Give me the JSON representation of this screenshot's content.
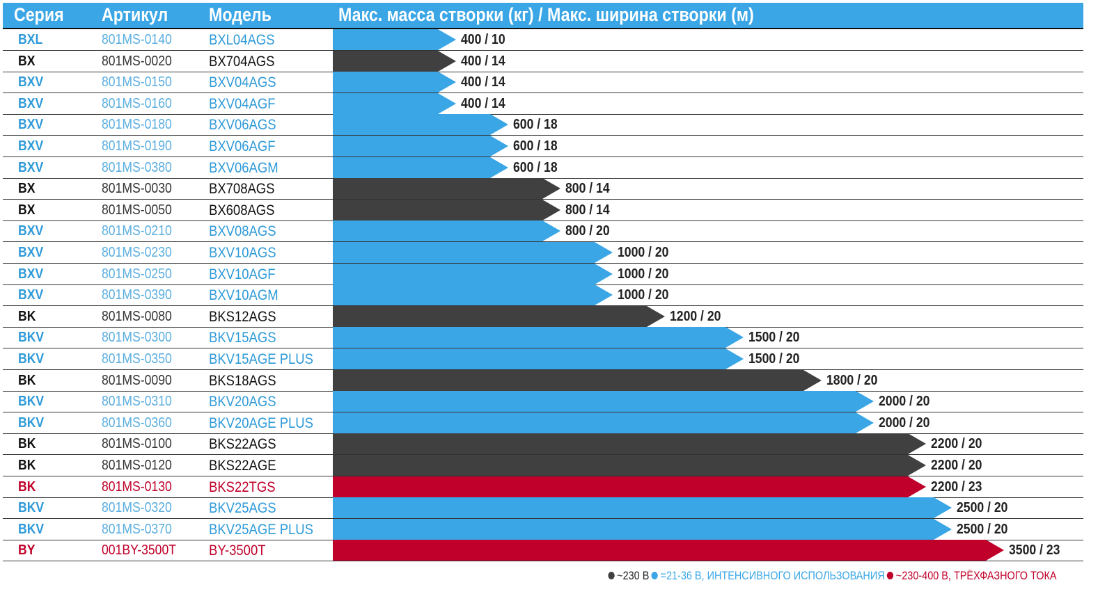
{
  "chart_data": {
    "type": "bar",
    "title": "",
    "headers": {
      "series": "Серия",
      "article": "Артикул",
      "model": "Модель",
      "value": "Макс. масса створки (кг) / Макс. ширина створки (м)"
    },
    "colors": {
      "blue": "#3aa6e6",
      "dark": "#404040",
      "red": "#c0002a"
    },
    "rows": [
      {
        "series": "BXL",
        "article": "801MS-0140",
        "model": "BXL04AGS",
        "mass": 400,
        "width": 10,
        "label": "400 / 10",
        "type": "blue"
      },
      {
        "series": "BX",
        "article": "801MS-0020",
        "model": "BX704AGS",
        "mass": 400,
        "width": 14,
        "label": "400 / 14",
        "type": "dark"
      },
      {
        "series": "BXV",
        "article": "801MS-0150",
        "model": "BXV04AGS",
        "mass": 400,
        "width": 14,
        "label": "400 / 14",
        "type": "blue"
      },
      {
        "series": "BXV",
        "article": "801MS-0160",
        "model": "BXV04AGF",
        "mass": 400,
        "width": 14,
        "label": "400 / 14",
        "type": "blue"
      },
      {
        "series": "BXV",
        "article": "801MS-0180",
        "model": "BXV06AGS",
        "mass": 600,
        "width": 18,
        "label": "600 / 18",
        "type": "blue"
      },
      {
        "series": "BXV",
        "article": "801MS-0190",
        "model": "BXV06AGF",
        "mass": 600,
        "width": 18,
        "label": "600 / 18",
        "type": "blue"
      },
      {
        "series": "BXV",
        "article": "801MS-0380",
        "model": "BXV06AGM",
        "mass": 600,
        "width": 18,
        "label": "600 / 18",
        "type": "blue"
      },
      {
        "series": "BX",
        "article": "801MS-0030",
        "model": "BX708AGS",
        "mass": 800,
        "width": 14,
        "label": "800 / 14",
        "type": "dark"
      },
      {
        "series": "BX",
        "article": "801MS-0050",
        "model": "BX608AGS",
        "mass": 800,
        "width": 14,
        "label": "800 / 14",
        "type": "dark"
      },
      {
        "series": "BXV",
        "article": "801MS-0210",
        "model": "BXV08AGS",
        "mass": 800,
        "width": 20,
        "label": "800 / 20",
        "type": "blue"
      },
      {
        "series": "BXV",
        "article": "801MS-0230",
        "model": "BXV10AGS",
        "mass": 1000,
        "width": 20,
        "label": "1000 / 20",
        "type": "blue"
      },
      {
        "series": "BXV",
        "article": "801MS-0250",
        "model": "BXV10AGF",
        "mass": 1000,
        "width": 20,
        "label": "1000 / 20",
        "type": "blue"
      },
      {
        "series": "BXV",
        "article": "801MS-0390",
        "model": "BXV10AGM",
        "mass": 1000,
        "width": 20,
        "label": "1000 / 20",
        "type": "blue"
      },
      {
        "series": "BK",
        "article": "801MS-0080",
        "model": "BKS12AGS",
        "mass": 1200,
        "width": 20,
        "label": "1200 / 20",
        "type": "dark"
      },
      {
        "series": "BKV",
        "article": "801MS-0300",
        "model": "BKV15AGS",
        "mass": 1500,
        "width": 20,
        "label": "1500 / 20",
        "type": "blue"
      },
      {
        "series": "BKV",
        "article": "801MS-0350",
        "model": "BKV15AGE PLUS",
        "mass": 1500,
        "width": 20,
        "label": "1500 / 20",
        "type": "blue"
      },
      {
        "series": "BK",
        "article": "801MS-0090",
        "model": "BKS18AGS",
        "mass": 1800,
        "width": 20,
        "label": "1800 / 20",
        "type": "dark"
      },
      {
        "series": "BKV",
        "article": "801MS-0310",
        "model": "BKV20AGS",
        "mass": 2000,
        "width": 20,
        "label": "2000 / 20",
        "type": "blue"
      },
      {
        "series": "BKV",
        "article": "801MS-0360",
        "model": "BKV20AGE PLUS",
        "mass": 2000,
        "width": 20,
        "label": "2000 / 20",
        "type": "blue"
      },
      {
        "series": "BK",
        "article": "801MS-0100",
        "model": "BKS22AGS",
        "mass": 2200,
        "width": 20,
        "label": "2200 / 20",
        "type": "dark"
      },
      {
        "series": "BK",
        "article": "801MS-0120",
        "model": "BKS22AGE",
        "mass": 2200,
        "width": 20,
        "label": "2200 / 20",
        "type": "dark"
      },
      {
        "series": "BK",
        "article": "801MS-0130",
        "model": "BKS22TGS",
        "mass": 2200,
        "width": 23,
        "label": "2200 / 23",
        "type": "red"
      },
      {
        "series": "BKV",
        "article": "801MS-0320",
        "model": "BKV25AGS",
        "mass": 2500,
        "width": 20,
        "label": "2500 / 20",
        "type": "blue"
      },
      {
        "series": "BKV",
        "article": "801MS-0370",
        "model": "BKV25AGE PLUS",
        "mass": 2500,
        "width": 20,
        "label": "2500 / 20",
        "type": "blue"
      },
      {
        "series": "BY",
        "article": "001BY-3500T",
        "model": "BY-3500T",
        "mass": 3500,
        "width": 23,
        "label": "3500 / 23",
        "type": "red"
      }
    ],
    "legend": [
      {
        "label": "~230 В",
        "type": "dark"
      },
      {
        "label": "=21-36 В, ИНТЕНСИВНОГО ИСПОЛЬЗОВАНИЯ",
        "type": "blue"
      },
      {
        "label": "~230-400 В, ТРЁХФАЗНОГО ТОКА",
        "type": "red"
      }
    ]
  }
}
